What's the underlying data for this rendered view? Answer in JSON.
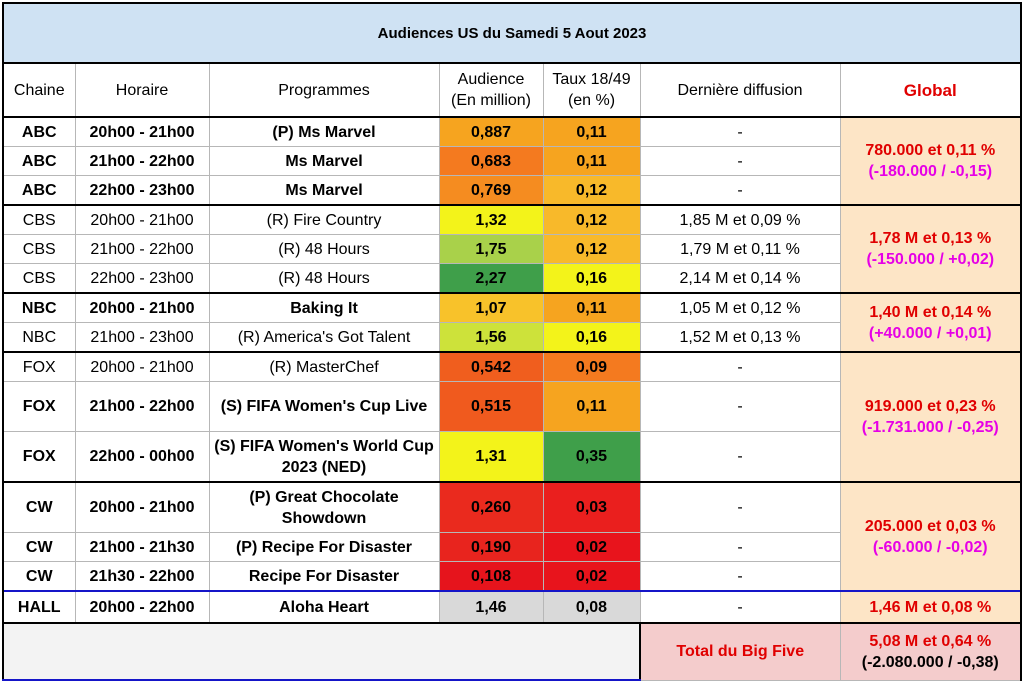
{
  "title": "Audiences US du Samedi 5 Aout 2023",
  "headers": {
    "chaine": "Chaine",
    "horaire": "Horaire",
    "programmes": "Programmes",
    "audience_l1": "Audience",
    "audience_l2": "(En million)",
    "taux_l1": "Taux 18/49",
    "taux_l2": "(en %)",
    "derniere": "Dernière diffusion",
    "global": "Global"
  },
  "rows": [
    {
      "chaine": "ABC",
      "horaire": "20h00 - 21h00",
      "programme": "(P) Ms Marvel",
      "audience": "0,887",
      "taux": "0,11",
      "derniere": "-",
      "aud_color": "#f6a41f",
      "taux_color": "#f6a41f"
    },
    {
      "chaine": "ABC",
      "horaire": "21h00 - 22h00",
      "programme": "Ms Marvel",
      "audience": "0,683",
      "taux": "0,11",
      "derniere": "-",
      "aud_color": "#f47a1f",
      "taux_color": "#f6a41f"
    },
    {
      "chaine": "ABC",
      "horaire": "22h00 - 23h00",
      "programme": "Ms Marvel",
      "audience": "0,769",
      "taux": "0,12",
      "derniere": "-",
      "aud_color": "#f58c20",
      "taux_color": "#f8b92a"
    },
    {
      "chaine": "CBS",
      "horaire": "20h00 - 21h00",
      "programme": "(R) Fire Country",
      "audience": "1,32",
      "taux": "0,12",
      "derniere": "1,85 M et 0,09 %",
      "aud_color": "#f3f31a",
      "taux_color": "#f8b92a"
    },
    {
      "chaine": "CBS",
      "horaire": "21h00 - 22h00",
      "programme": "(R) 48 Hours",
      "audience": "1,75",
      "taux": "0,12",
      "derniere": "1,79 M et 0,11 %",
      "aud_color": "#a9d14a",
      "taux_color": "#f8b92a"
    },
    {
      "chaine": "CBS",
      "horaire": "22h00 - 23h00",
      "programme": "(R) 48 Hours",
      "audience": "2,27",
      "taux": "0,16",
      "derniere": "2,14 M et 0,14 %",
      "aud_color": "#3f9f4a",
      "taux_color": "#f3f31a"
    },
    {
      "chaine": "NBC",
      "horaire": "20h00 - 21h00",
      "programme": "Baking It",
      "audience": "1,07",
      "taux": "0,11",
      "derniere": "1,05 M et 0,12 %",
      "aud_color": "#f8c22a",
      "taux_color": "#f6a41f"
    },
    {
      "chaine": "NBC",
      "horaire": "21h00 - 23h00",
      "programme": "(R) America's Got Talent",
      "audience": "1,56",
      "taux": "0,16",
      "derniere": "1,52 M et 0,13 %",
      "aud_color": "#cde23a",
      "taux_color": "#f3f31a"
    },
    {
      "chaine": "FOX",
      "horaire": "20h00 - 21h00",
      "programme": "(R) MasterChef",
      "audience": "0,542",
      "taux": "0,09",
      "derniere": "-",
      "aud_color": "#f05e1e",
      "taux_color": "#f47a1f"
    },
    {
      "chaine": "FOX",
      "horaire": "21h00 - 22h00",
      "programme": "(S) FIFA Women's Cup Live",
      "audience": "0,515",
      "taux": "0,11",
      "derniere": "-",
      "aud_color": "#f05a1e",
      "taux_color": "#f6a41f"
    },
    {
      "chaine": "FOX",
      "horaire": "22h00 - 00h00",
      "programme": "(S) FIFA Women's World Cup 2023 (NED)",
      "audience": "1,31",
      "taux": "0,35",
      "derniere": "-",
      "aud_color": "#f3f31a",
      "taux_color": "#3f9f4a"
    },
    {
      "chaine": "CW",
      "horaire": "20h00 - 21h00",
      "programme": "(P) Great Chocolate Showdown",
      "audience": "0,260",
      "taux": "0,03",
      "derniere": "-",
      "aud_color": "#ea2a1e",
      "taux_color": "#ea1f1e"
    },
    {
      "chaine": "CW",
      "horaire": "21h00 - 21h30",
      "programme": "(P) Recipe For Disaster",
      "audience": "0,190",
      "taux": "0,02",
      "derniere": "-",
      "aud_color": "#e8241e",
      "taux_color": "#e8141c"
    },
    {
      "chaine": "CW",
      "horaire": "21h30 - 22h00",
      "programme": "Recipe For Disaster",
      "audience": "0,108",
      "taux": "0,02",
      "derniere": "-",
      "aud_color": "#e6141c",
      "taux_color": "#e8141c"
    },
    {
      "chaine": "HALL",
      "horaire": "20h00 - 22h00",
      "programme": "Aloha Heart",
      "audience": "1,46",
      "taux": "0,08",
      "derniere": "-",
      "aud_color": "#d9d9d9",
      "taux_color": "#d9d9d9"
    }
  ],
  "globals": [
    {
      "line1": "780.000 et 0,11 %",
      "line2": "(-180.000 / -0,15)"
    },
    {
      "line1": "1,78 M et 0,13 %",
      "line2": "(-150.000 / +0,02)"
    },
    {
      "line1": "1,40 M et 0,14 %",
      "line2": "(+40.000 / +0,01)"
    },
    {
      "line1": "919.000 et 0,23 %",
      "line2": "(-1.731.000 / -0,25)"
    },
    {
      "line1": "205.000 et 0,03 %",
      "line2": "(-60.000 / -0,02)"
    },
    {
      "line1": "1,46 M et 0,08 %",
      "line2": ""
    }
  ],
  "total": {
    "label": "Total du Big Five",
    "line1": "5,08 M et 0,64 %",
    "line2": "(-2.080.000 / -0,38)"
  },
  "colors": {
    "title_bg": "#cfe2f3",
    "global_bg": "#fde5c6",
    "total_bg": "#f4cccc",
    "global_red": "#e00000",
    "global_magenta": "#e600e6",
    "hall_line": "#1515c8"
  }
}
